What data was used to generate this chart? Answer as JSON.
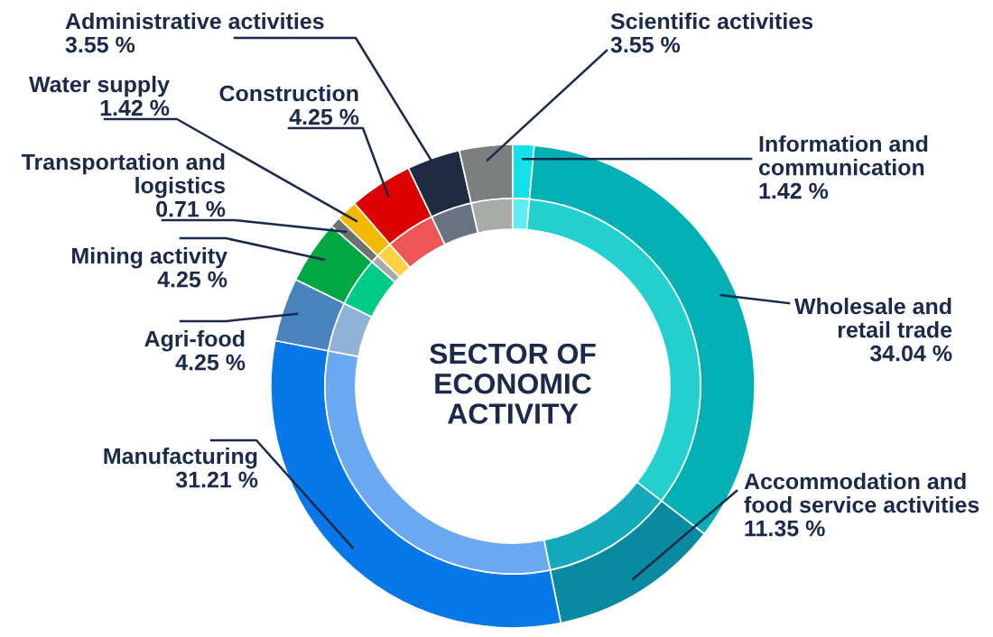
{
  "chart_data": {
    "type": "donut",
    "title": "SECTOR OF\nECONOMIC\nACTIVITY",
    "categories": [
      "Information and\ncommunication",
      "Wholesale and\nretail trade",
      "Accommodation and\nfood service activities",
      "Manufacturing",
      "Agri-food",
      "Mining activity",
      "Transportation and\nlogistics",
      "Water supply",
      "Construction",
      "Administrative activities",
      "Scientific activities"
    ],
    "series": [
      {
        "values": [
          1.42,
          34.04,
          11.35,
          31.21,
          4.25,
          4.25,
          0.71,
          1.42,
          4.25,
          3.55,
          3.55
        ],
        "colors": [
          "#12e0ea",
          "#00b0b4",
          "#0a8aa0",
          "#0877e8",
          "#4a84be",
          "#00a844",
          "#707070",
          "#f5b800",
          "#dd0000",
          "#1f2b42",
          "#7b7f7d"
        ]
      },
      {
        "values": [
          1.42,
          34.04,
          11.35,
          31.21,
          4.25,
          4.25,
          0.71,
          1.42,
          4.25,
          3.55,
          3.55
        ],
        "colors": [
          "#5cecf2",
          "#22d0d0",
          "#14aabc",
          "#6aa8f2",
          "#8fb2d6",
          "#00cc88",
          "#a8a8a8",
          "#ffd040",
          "#f05555",
          "#6a7384",
          "#a9aba9"
        ]
      }
    ],
    "value_labels": [
      "1.42 %",
      "34.04 %",
      "11.35 %",
      "31.21 %",
      "4.25 %",
      "4.25 %",
      "0.71 %",
      "1.42 %",
      "4.25 %",
      "3.55 %",
      "3.55 %"
    ],
    "legend": false
  }
}
